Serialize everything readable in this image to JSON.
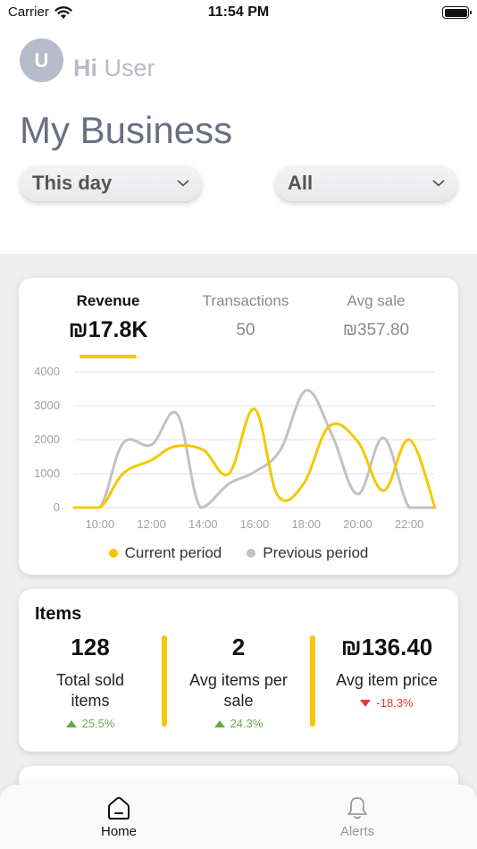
{
  "status_bar": {
    "carrier": "Carrier",
    "time": "11:54 PM"
  },
  "header": {
    "avatar_initial": "U",
    "greeting_prefix": "Hi",
    "greeting_name": "User",
    "title": "My Business"
  },
  "filters": {
    "period": "This day",
    "scope": "All"
  },
  "kpis": [
    {
      "label": "Revenue",
      "value": "₪17.8K"
    },
    {
      "label": "Transactions",
      "value": "50"
    },
    {
      "label": "Avg sale",
      "value": "₪357.80"
    }
  ],
  "chart_data": {
    "type": "line",
    "ylim": [
      0,
      4000
    ],
    "yticks": [
      0,
      1000,
      2000,
      3000,
      4000
    ],
    "xticks": [
      "10:00",
      "12:00",
      "14:00",
      "16:00",
      "18:00",
      "20:00",
      "22:00"
    ],
    "xlim": [
      9.0,
      23.0
    ],
    "series": [
      {
        "name": "Current period",
        "color": "#f5c800",
        "x": [
          9.0,
          10.0,
          10.9,
          12.0,
          12.9,
          14.0,
          15.0,
          16.0,
          16.9,
          17.9,
          18.9,
          20.0,
          21.0,
          22.0,
          23.0
        ],
        "y": [
          0,
          0,
          1000,
          1400,
          1800,
          1700,
          1000,
          2900,
          350,
          700,
          2400,
          1950,
          500,
          2000,
          0
        ]
      },
      {
        "name": "Previous period",
        "color": "#c2c2c2",
        "x": [
          9.0,
          10.0,
          10.9,
          12.0,
          13.0,
          13.9,
          15.0,
          16.0,
          17.0,
          18.0,
          19.0,
          20.0,
          21.0,
          22.0,
          23.0
        ],
        "y": [
          0,
          0,
          1900,
          1850,
          2750,
          0,
          700,
          1050,
          1700,
          3450,
          2150,
          400,
          2050,
          0,
          0
        ]
      }
    ]
  },
  "items": {
    "title": "Items",
    "stats": [
      {
        "value": "128",
        "label": "Total sold items",
        "change": "25.5%",
        "trend": "up"
      },
      {
        "value": "2",
        "label": "Avg items per sale",
        "change": "24.3%",
        "trend": "up"
      },
      {
        "value": "₪136.40",
        "label": "Avg item price",
        "change": "-18.3%",
        "trend": "down"
      }
    ]
  },
  "tabs": [
    {
      "label": "Home",
      "icon": "home-icon",
      "active": true
    },
    {
      "label": "Alerts",
      "icon": "bell-icon",
      "active": false
    }
  ]
}
